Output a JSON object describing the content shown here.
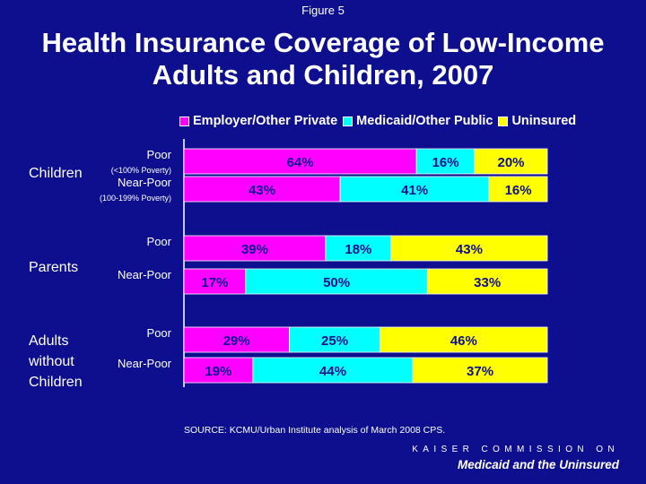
{
  "figure_label": "Figure 5",
  "title_line1": "Health Insurance Coverage of Low-Income",
  "title_line2": "Adults and Children, 2007",
  "colors": {
    "background": "#0e0f8f",
    "employer": "#ff00ff",
    "medicaid": "#00ffff",
    "uninsured": "#ffff00"
  },
  "chart_data": {
    "type": "bar",
    "stacked": true,
    "orientation": "horizontal",
    "title": "Health Insurance Coverage of Low-Income Adults and Children, 2007",
    "legend_position": "top",
    "xlim": [
      0,
      100
    ],
    "series": [
      {
        "name": "Employer/Other Private",
        "color": "#ff00ff"
      },
      {
        "name": "Medicaid/Other Public",
        "color": "#00ffff"
      },
      {
        "name": "Uninsured",
        "color": "#ffff00"
      }
    ],
    "groups": [
      {
        "label": "Children",
        "bars": [
          {
            "label": "Poor",
            "sublabel": "(<100% Poverty)",
            "values": [
              64,
              16,
              20
            ],
            "labels": [
              "64%",
              "16%",
              "20%"
            ]
          },
          {
            "label": "Near-Poor",
            "sublabel": "(100-199% Poverty)",
            "values": [
              43,
              41,
              16
            ],
            "labels": [
              "43%",
              "41%",
              "16%"
            ]
          }
        ]
      },
      {
        "label": "Parents",
        "bars": [
          {
            "label": "Poor",
            "sublabel": "",
            "values": [
              39,
              18,
              43
            ],
            "labels": [
              "39%",
              "18%",
              "43%"
            ]
          },
          {
            "label": "Near-Poor",
            "sublabel": "",
            "values": [
              17,
              50,
              33
            ],
            "labels": [
              "17%",
              "50%",
              "33%"
            ]
          }
        ]
      },
      {
        "label": "Adults without Children",
        "label_lines": [
          "Adults",
          "without",
          "Children"
        ],
        "bars": [
          {
            "label": "Poor",
            "sublabel": "",
            "values": [
              29,
              25,
              46
            ],
            "labels": [
              "29%",
              "25%",
              "46%"
            ]
          },
          {
            "label": "Near-Poor",
            "sublabel": "",
            "values": [
              19,
              44,
              37
            ],
            "labels": [
              "19%",
              "44%",
              "37%"
            ]
          }
        ]
      }
    ]
  },
  "source": "SOURCE: KCMU/Urban Institute analysis of March 2008 CPS.",
  "brand_top": "KAISER COMMISSION ON",
  "brand_bottom": "Medicaid and the Uninsured"
}
